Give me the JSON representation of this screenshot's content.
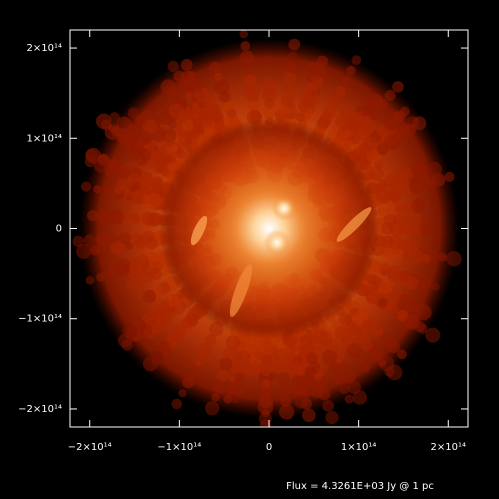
{
  "chart_data": {
    "type": "image",
    "xlim": [
      -222000000000000.0,
      222000000000000.0
    ],
    "ylim": [
      -220000000000000.0,
      220000000000000.0
    ],
    "xticks": [
      {
        "value": -200000000000000.0,
        "label": "−2×10¹⁴"
      },
      {
        "value": -100000000000000.0,
        "label": "−1×10¹⁴"
      },
      0,
      {
        "value": 100000000000000.0,
        "label": "1×10¹⁴"
      },
      {
        "value": 200000000000000.0,
        "label": "2×10¹⁴"
      }
    ],
    "yticks": [
      {
        "value": -200000000000000.0,
        "label": "−2×10¹⁴"
      },
      {
        "value": -100000000000000.0,
        "label": "−1×10¹⁴"
      },
      0,
      {
        "value": 100000000000000.0,
        "label": "1×10¹⁴"
      },
      {
        "value": 200000000000000.0,
        "label": "2×10¹⁴"
      }
    ],
    "annotation": "Flux = 4.3261E+03 Jy @ 1 pc"
  }
}
